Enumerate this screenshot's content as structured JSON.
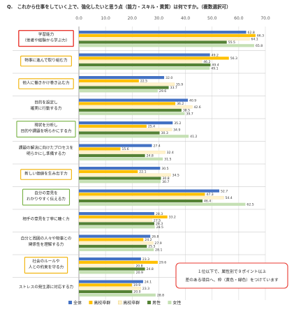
{
  "chart_data": {
    "type": "bar",
    "orientation": "horizontal",
    "title": "Q.　これから仕事をしていく上で、強化したいと思う点（能力・スキル・資質）は何ですか。（複数選択可）",
    "xlim": [
      0,
      70
    ],
    "xticks": [
      0,
      10,
      20,
      30,
      40,
      50,
      60,
      70
    ],
    "xtick_labels": [
      "0.0",
      "10.0",
      "20.0",
      "30.0",
      "40.0",
      "50.0",
      "60.0",
      "70.0"
    ],
    "grid": true,
    "legend_position": "bottom",
    "categories": [
      {
        "lines": [
          "学習能力",
          "（他者や経験から学ぶ力）"
        ],
        "highlight": "red"
      },
      {
        "lines": [
          "物事に進んで取り組む力"
        ],
        "highlight": "orange"
      },
      {
        "lines": [
          "他人に働きかけ巻き込む力"
        ],
        "highlight": "orange"
      },
      {
        "lines": [
          "目的を設定し",
          "確実に行動する力"
        ],
        "highlight": "none"
      },
      {
        "lines": [
          "現状を分析し",
          "目的や課題を明らかにする力"
        ],
        "highlight": "green"
      },
      {
        "lines": [
          "課題の解決に向けたプロセスを",
          "明らかにし準備する力"
        ],
        "highlight": "none"
      },
      {
        "lines": [
          "新しい価値を生み出す力"
        ],
        "highlight": "orange"
      },
      {
        "lines": [
          "自分の意見を",
          "わかりやすく伝える力"
        ],
        "highlight": "green"
      },
      {
        "lines": [
          "相手の意見を丁寧に聴く力"
        ],
        "highlight": "none"
      },
      {
        "lines": [
          "自分と周囲の人々や物事との",
          "関係性を理解する力"
        ],
        "highlight": "none"
      },
      {
        "lines": [
          "社会のルールや",
          "人との約束を守る力"
        ],
        "highlight": "orange"
      },
      {
        "lines": [
          "ストレスの発生源に対応する力"
        ],
        "highlight": "none"
      }
    ],
    "series": [
      {
        "name": "全体",
        "color": "#4472C4",
        "values": [
          62.8,
          49.2,
          32.0,
          40.9,
          35.2,
          27.4,
          30.5,
          52.7,
          28.3,
          26.8,
          23.3,
          24.1
        ]
      },
      {
        "name": "高校卒群",
        "color": "#FFC000",
        "values": [
          66.3,
          56.3,
          22.5,
          36.2,
          25.4,
          15.6,
          22.1,
          47.3,
          33.2,
          24.2,
          29.6,
          19.9
        ]
      },
      {
        "name": "高校卒群",
        "color": "#FFF2CC",
        "values": [
          64.1,
          46.2,
          35.9,
          42.6,
          34.9,
          32.4,
          34.5,
          54.4,
          27.5,
          27.9,
          20.8,
          23.3
        ]
      },
      {
        "name": "男性",
        "color": "#548235",
        "values": [
          55.5,
          49.4,
          33.7,
          38.5,
          30.3,
          24.8,
          30.8,
          46.4,
          28.3,
          25.5,
          24.8,
          20.0
        ]
      },
      {
        "name": "女性",
        "color": "#C5E0B4",
        "values": [
          65.8,
          49.1,
          29.6,
          39.7,
          41.2,
          31.5,
          30.7,
          62.5,
          28.5,
          28.1,
          20.9,
          28.8
        ]
      }
    ],
    "note": [
      "１位以下で、属性別で９ポイント以上",
      "差のある項目へ、枠（黄色・緑色）をつけています"
    ]
  }
}
